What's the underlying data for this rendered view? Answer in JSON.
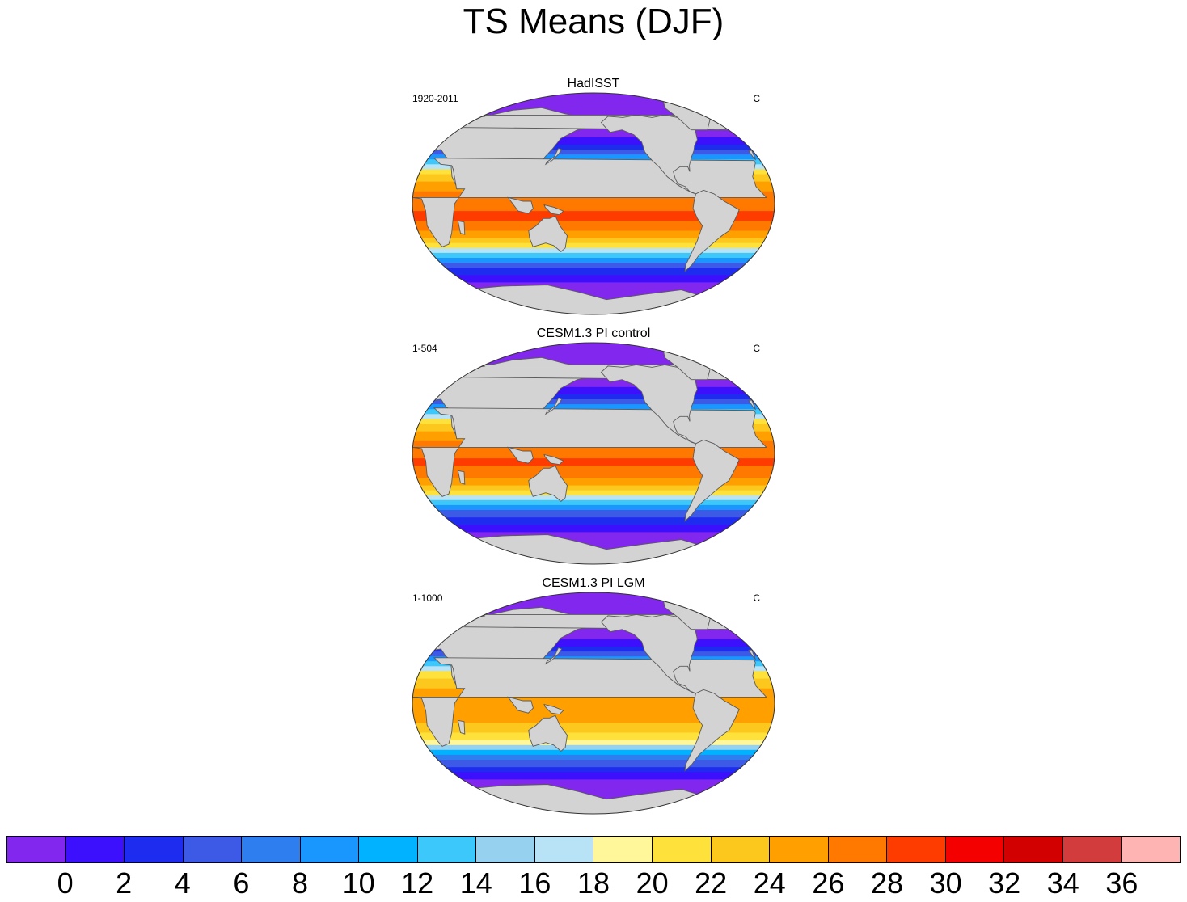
{
  "title": "TS Means (DJF)",
  "panels": [
    {
      "title": "HadISST",
      "left_label": "1920-2011",
      "right_label": "C",
      "variant": "obs"
    },
    {
      "title": "CESM1.3 PI control",
      "left_label": "1-504",
      "right_label": "C",
      "variant": "pi"
    },
    {
      "title": "CESM1.3 PI LGM",
      "left_label": "1-1000",
      "right_label": "C",
      "variant": "lgm"
    }
  ],
  "colorbar": {
    "colors": [
      "#8228ee",
      "#3c10fc",
      "#1e2cf0",
      "#3c5ae6",
      "#2e7ef0",
      "#1a96ff",
      "#00b2ff",
      "#3cc8fa",
      "#96d2f0",
      "#b8e2f6",
      "#fff79a",
      "#ffe13c",
      "#fcc81e",
      "#ffa000",
      "#ff7800",
      "#ff3c00",
      "#f50000",
      "#d20000",
      "#d23c3c",
      "#ffb4b4"
    ],
    "labels": [
      "0",
      "2",
      "4",
      "6",
      "8",
      "10",
      "12",
      "14",
      "16",
      "18",
      "20",
      "22",
      "24",
      "26",
      "28",
      "30",
      "32",
      "34",
      "36"
    ]
  },
  "map_style": {
    "land": "#d3d3d3",
    "coast": "#5a5a5a"
  }
}
